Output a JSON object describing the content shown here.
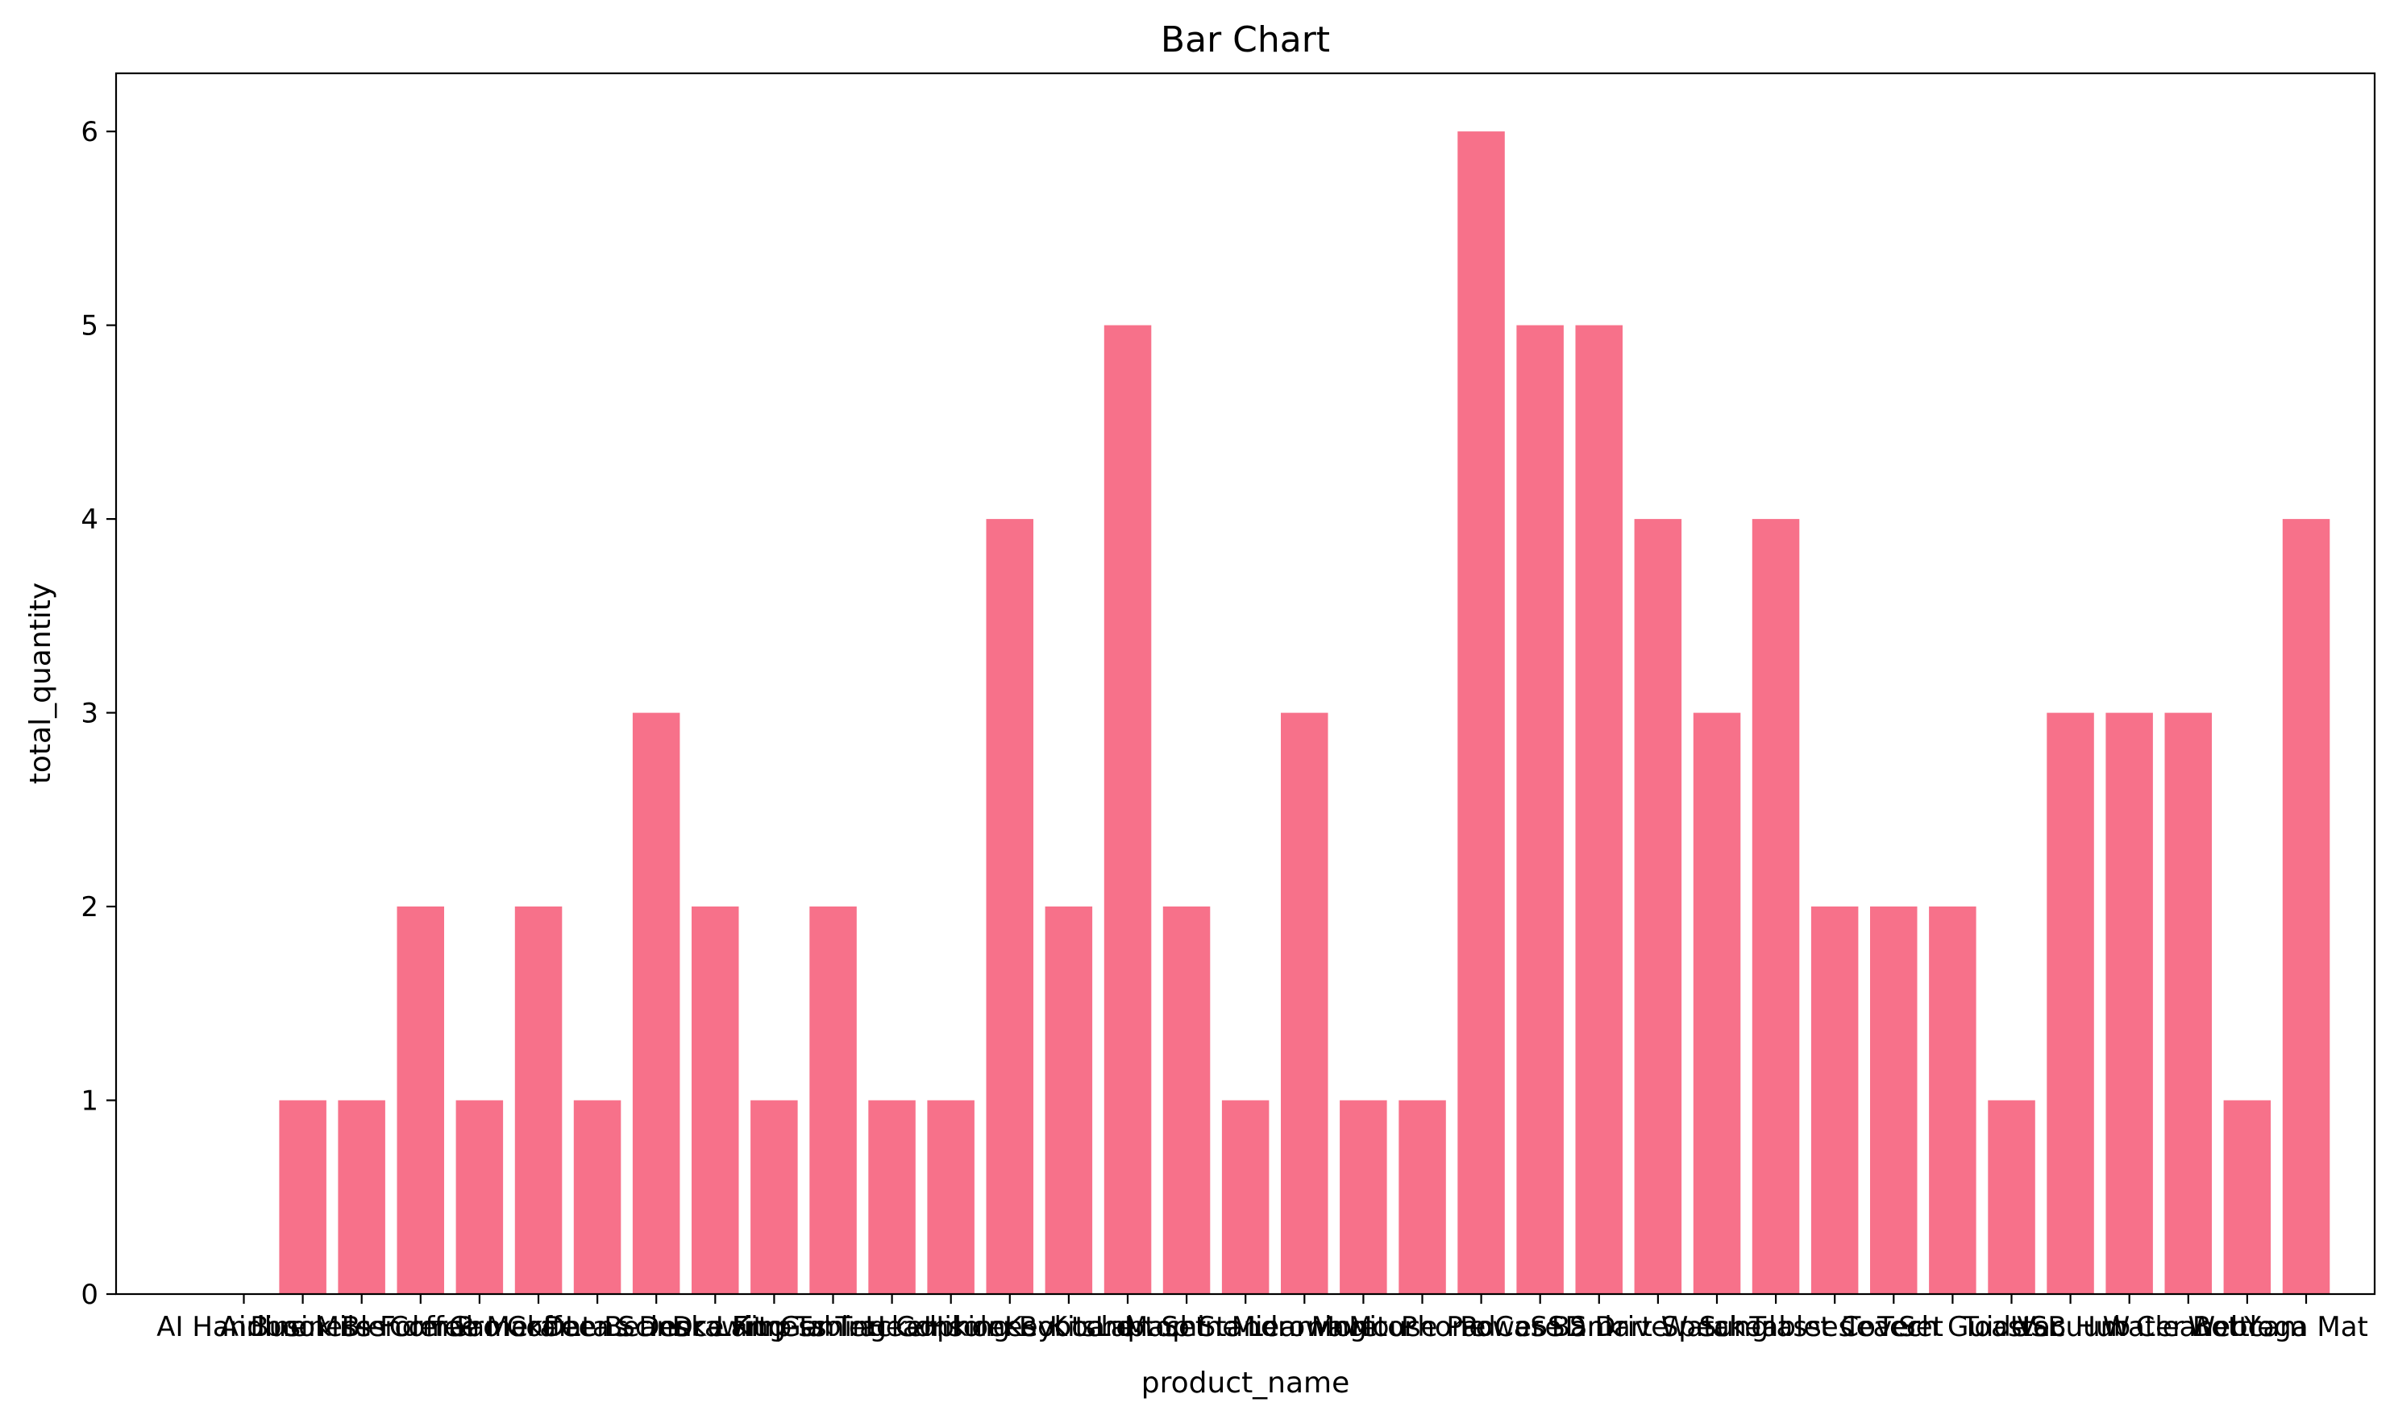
{
  "chart_data": {
    "type": "bar",
    "title": "Bar Chart",
    "xlabel": "product_name",
    "ylabel": "total_quantity",
    "ylim": [
      0,
      6.3
    ],
    "yticks": [
      0,
      1,
      2,
      3,
      4,
      5,
      6
    ],
    "bar_color": "#f7718a",
    "grid": false,
    "categories": [
      "AI Handbook",
      "Airline Miles",
      "Business Formal",
      "Blender Pro",
      "Coffee Maker",
      "Camera Lens",
      "Coffee Beans",
      "Data Science Kit",
      "Desk Lamp",
      "Drawing Tablet",
      "Fitness Tracker",
      "Gaming Console",
      "Headphones",
      "Hiking Boots",
      "Keyboard",
      "Kitchen Set",
      "Laptop Stand",
      "Machine Learning",
      "Microwave",
      "Monitor",
      "Mouse Pad",
      "Phone Case",
      "Power Bank",
      "SSD Drive",
      "Smart Watch",
      "Speaker",
      "Sunglasses",
      "Tablet Cover",
      "Tea Set",
      "Tech Guide",
      "Toaster",
      "USB Hub",
      "Vacuum Cleaner",
      "Water Bottle",
      "Webcam",
      "Yoga Mat"
    ],
    "values": [
      0,
      1,
      1,
      2,
      1,
      2,
      1,
      3,
      2,
      1,
      2,
      1,
      1,
      4,
      2,
      5,
      2,
      1,
      3,
      1,
      1,
      6,
      5,
      5,
      4,
      3,
      4,
      2,
      2,
      2,
      1,
      3,
      3,
      3,
      1,
      4
    ]
  }
}
